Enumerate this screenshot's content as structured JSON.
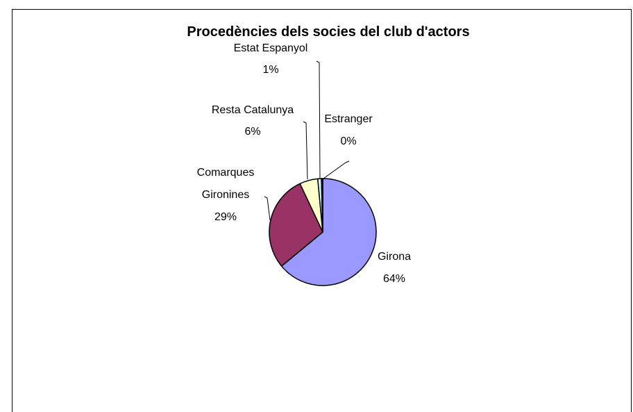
{
  "chart_data": {
    "type": "pie",
    "title": "Procedències dels socies del club d'actors",
    "slices": [
      {
        "name": "Girona",
        "value": 64,
        "label": "64%",
        "color": "#9999ff"
      },
      {
        "name": "Comarques Gironines",
        "lines": [
          "Comarques",
          "Gironines"
        ],
        "value": 29,
        "label": "29%",
        "color": "#993366"
      },
      {
        "name": "Resta Catalunya",
        "value": 5.5,
        "label": "6%",
        "color": "#ffffcc"
      },
      {
        "name": "Estat Espanyol",
        "value": 1.1,
        "label": "1%",
        "color": "#ccffff"
      },
      {
        "name": "Estranger",
        "value": 0.4,
        "label": "0%",
        "color": "#660066"
      }
    ],
    "legend": "none"
  }
}
